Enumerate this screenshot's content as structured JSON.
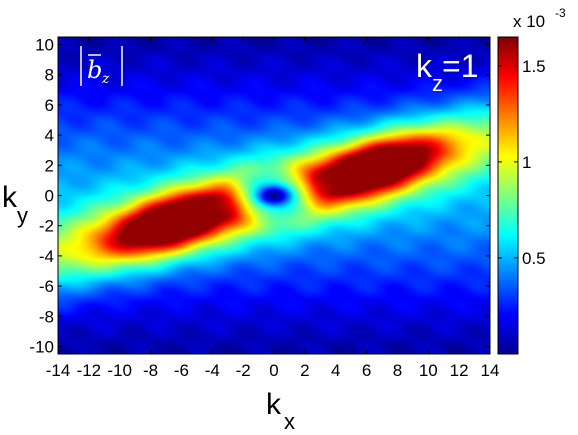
{
  "chart_data": {
    "type": "heatmap",
    "title": "",
    "xlabel": "k",
    "xlabel_sub": "x",
    "ylabel": "k",
    "ylabel_sub": "y",
    "xlim": [
      -14,
      14
    ],
    "ylim": [
      -10.5,
      10.5
    ],
    "x_ticks": [
      -14,
      -12,
      -10,
      -8,
      -6,
      -4,
      -2,
      0,
      2,
      4,
      6,
      8,
      10,
      12,
      14
    ],
    "y_ticks": [
      -10,
      -8,
      -6,
      -4,
      -2,
      0,
      2,
      4,
      6,
      8,
      10
    ],
    "annotation": {
      "text": "k",
      "sub": "z",
      "rest": "=1"
    },
    "quantity_label": {
      "bar": "b",
      "sub": "z"
    },
    "colorbar": {
      "colormap": "jet",
      "min": 0.0,
      "max": 1.65,
      "ticks": [
        0.5,
        1,
        1.5
      ],
      "tick_labels": [
        "0.5",
        "1",
        "1.5"
      ],
      "multiplier": "x 10",
      "multiplier_exp": "-3"
    },
    "features": [
      {
        "kind": "peak",
        "kx": -6.5,
        "ky": -1.8,
        "value": 1.62
      },
      {
        "kind": "peak",
        "kx": 6.5,
        "ky": 1.8,
        "value": 1.62
      },
      {
        "kind": "minimum",
        "kx": 0,
        "ky": 0,
        "value": 0.02
      }
    ]
  }
}
